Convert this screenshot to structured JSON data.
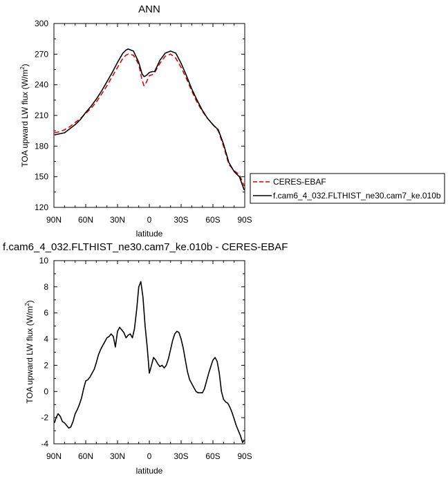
{
  "chart_data": [
    {
      "type": "line",
      "title": "ANN",
      "xlabel": "latitude",
      "ylabel": "TOA upward LW flux (W/m",
      "ylabel_sup": "2",
      "ylabel_close": ")",
      "xlim": [
        90,
        -90
      ],
      "ylim": [
        120,
        300
      ],
      "xticks": [
        90,
        60,
        30,
        0,
        -30,
        -60,
        -90
      ],
      "xtick_labels": [
        "90N",
        "60N",
        "30N",
        "0",
        "30S",
        "60S",
        "90S"
      ],
      "yticks": [
        120,
        150,
        180,
        210,
        240,
        270,
        300
      ],
      "ytick_labels": [
        "120",
        "150",
        "180",
        "210",
        "240",
        "270",
        "300"
      ],
      "legend_placement": "right",
      "series": [
        {
          "name": "CERES-EBAF",
          "color": "#e00000",
          "dash": true,
          "x": [
            89.5,
            85,
            80,
            75,
            70,
            65,
            60,
            55,
            50,
            45,
            40,
            35,
            30,
            25,
            22,
            20,
            15,
            10,
            7,
            5,
            3,
            0,
            -3,
            -5,
            -10,
            -15,
            -20,
            -25,
            -30,
            -35,
            -40,
            -45,
            -50,
            -55,
            -60,
            -65,
            -70,
            -75,
            -80,
            -85,
            -89.5
          ],
          "values": [
            193,
            194,
            196,
            199,
            203,
            207,
            212,
            217,
            223,
            231,
            239,
            248,
            257,
            266,
            269,
            270,
            269,
            260,
            245,
            239,
            242,
            249,
            250,
            252,
            261,
            268,
            270,
            266,
            257,
            246,
            234,
            223,
            214,
            207,
            201,
            195,
            180,
            162,
            156,
            152,
            141
          ]
        },
        {
          "name": "f.cam6_4_032.FLTHIST_ne30.cam7_ke.010b",
          "color": "#000000",
          "dash": false,
          "x": [
            89.5,
            85,
            80,
            75,
            70,
            65,
            60,
            55,
            50,
            45,
            40,
            35,
            30,
            25,
            22,
            20,
            15,
            10,
            7,
            5,
            3,
            0,
            -3,
            -5,
            -10,
            -15,
            -20,
            -25,
            -30,
            -35,
            -40,
            -45,
            -50,
            -55,
            -60,
            -65,
            -70,
            -75,
            -80,
            -85,
            -89.5
          ],
          "values": [
            191,
            192,
            193,
            197,
            201,
            206,
            213,
            219,
            226,
            234,
            243,
            252,
            262,
            271,
            274,
            275,
            273,
            262,
            251,
            248,
            249,
            252,
            253,
            253,
            264,
            271,
            273,
            271,
            261,
            249,
            236,
            225,
            215,
            207,
            201,
            196,
            182,
            164,
            155,
            150,
            137
          ]
        }
      ]
    },
    {
      "type": "line",
      "title": "f.cam6_4_032.FLTHIST_ne30.cam7_ke.010b - CERES-EBAF",
      "xlabel": "latitude",
      "ylabel": "TOA upward LW flux (W/m",
      "ylabel_sup": "2",
      "ylabel_close": ")",
      "xlim": [
        90,
        -90
      ],
      "ylim": [
        -4,
        10
      ],
      "xticks": [
        90,
        60,
        30,
        0,
        -30,
        -60,
        -90
      ],
      "xtick_labels": [
        "90N",
        "60N",
        "30N",
        "0",
        "30S",
        "60S",
        "90S"
      ],
      "yticks": [
        -4,
        -2,
        0,
        2,
        4,
        6,
        8,
        10
      ],
      "ytick_labels": [
        "-4",
        "-2",
        "0",
        "2",
        "4",
        "6",
        "8",
        "10"
      ],
      "series": [
        {
          "color": "#000000",
          "x": [
            89.5,
            88,
            86,
            84,
            82,
            80,
            78,
            76,
            74,
            72,
            70,
            68,
            66,
            64,
            62,
            60,
            58,
            56,
            54,
            52,
            50,
            48,
            46,
            44,
            42,
            40,
            38,
            36,
            34,
            32,
            30,
            28,
            26,
            24,
            22,
            20,
            18,
            16,
            14,
            12,
            10,
            8,
            6,
            4,
            2,
            0,
            -2,
            -4,
            -6,
            -8,
            -10,
            -12,
            -14,
            -16,
            -18,
            -20,
            -22,
            -24,
            -26,
            -28,
            -30,
            -32,
            -34,
            -36,
            -38,
            -40,
            -42,
            -44,
            -46,
            -48,
            -50,
            -52,
            -54,
            -56,
            -58,
            -60,
            -62,
            -64,
            -66,
            -68,
            -70,
            -72,
            -74,
            -76,
            -78,
            -80,
            -82,
            -84,
            -86,
            -88,
            -89.5
          ],
          "values": [
            -2.4,
            -2.0,
            -1.7,
            -1.9,
            -2.3,
            -2.4,
            -2.6,
            -2.8,
            -2.7,
            -2.3,
            -1.7,
            -1.4,
            -1.0,
            -0.5,
            0.2,
            0.8,
            0.9,
            1.1,
            1.4,
            1.7,
            2.2,
            2.8,
            3.2,
            3.5,
            3.8,
            4.1,
            4.2,
            4.4,
            4.2,
            3.4,
            4.6,
            4.9,
            4.7,
            4.5,
            4.1,
            4.3,
            4.4,
            4.1,
            4.8,
            6.2,
            8.0,
            8.4,
            7.2,
            5.0,
            3.4,
            1.4,
            2.0,
            2.6,
            2.4,
            2.1,
            1.9,
            2.0,
            1.8,
            2.0,
            2.5,
            3.2,
            3.9,
            4.4,
            4.6,
            4.5,
            4.0,
            3.3,
            2.4,
            1.5,
            0.9,
            0.6,
            0.3,
            0.0,
            -0.1,
            -0.1,
            -0.1,
            0.2,
            0.8,
            1.4,
            1.9,
            2.4,
            2.6,
            2.3,
            1.4,
            0.0,
            -0.6,
            -0.8,
            -0.9,
            -1.2,
            -1.6,
            -2.1,
            -2.6,
            -3.0,
            -3.4,
            -3.9,
            -3.7
          ]
        }
      ]
    }
  ]
}
